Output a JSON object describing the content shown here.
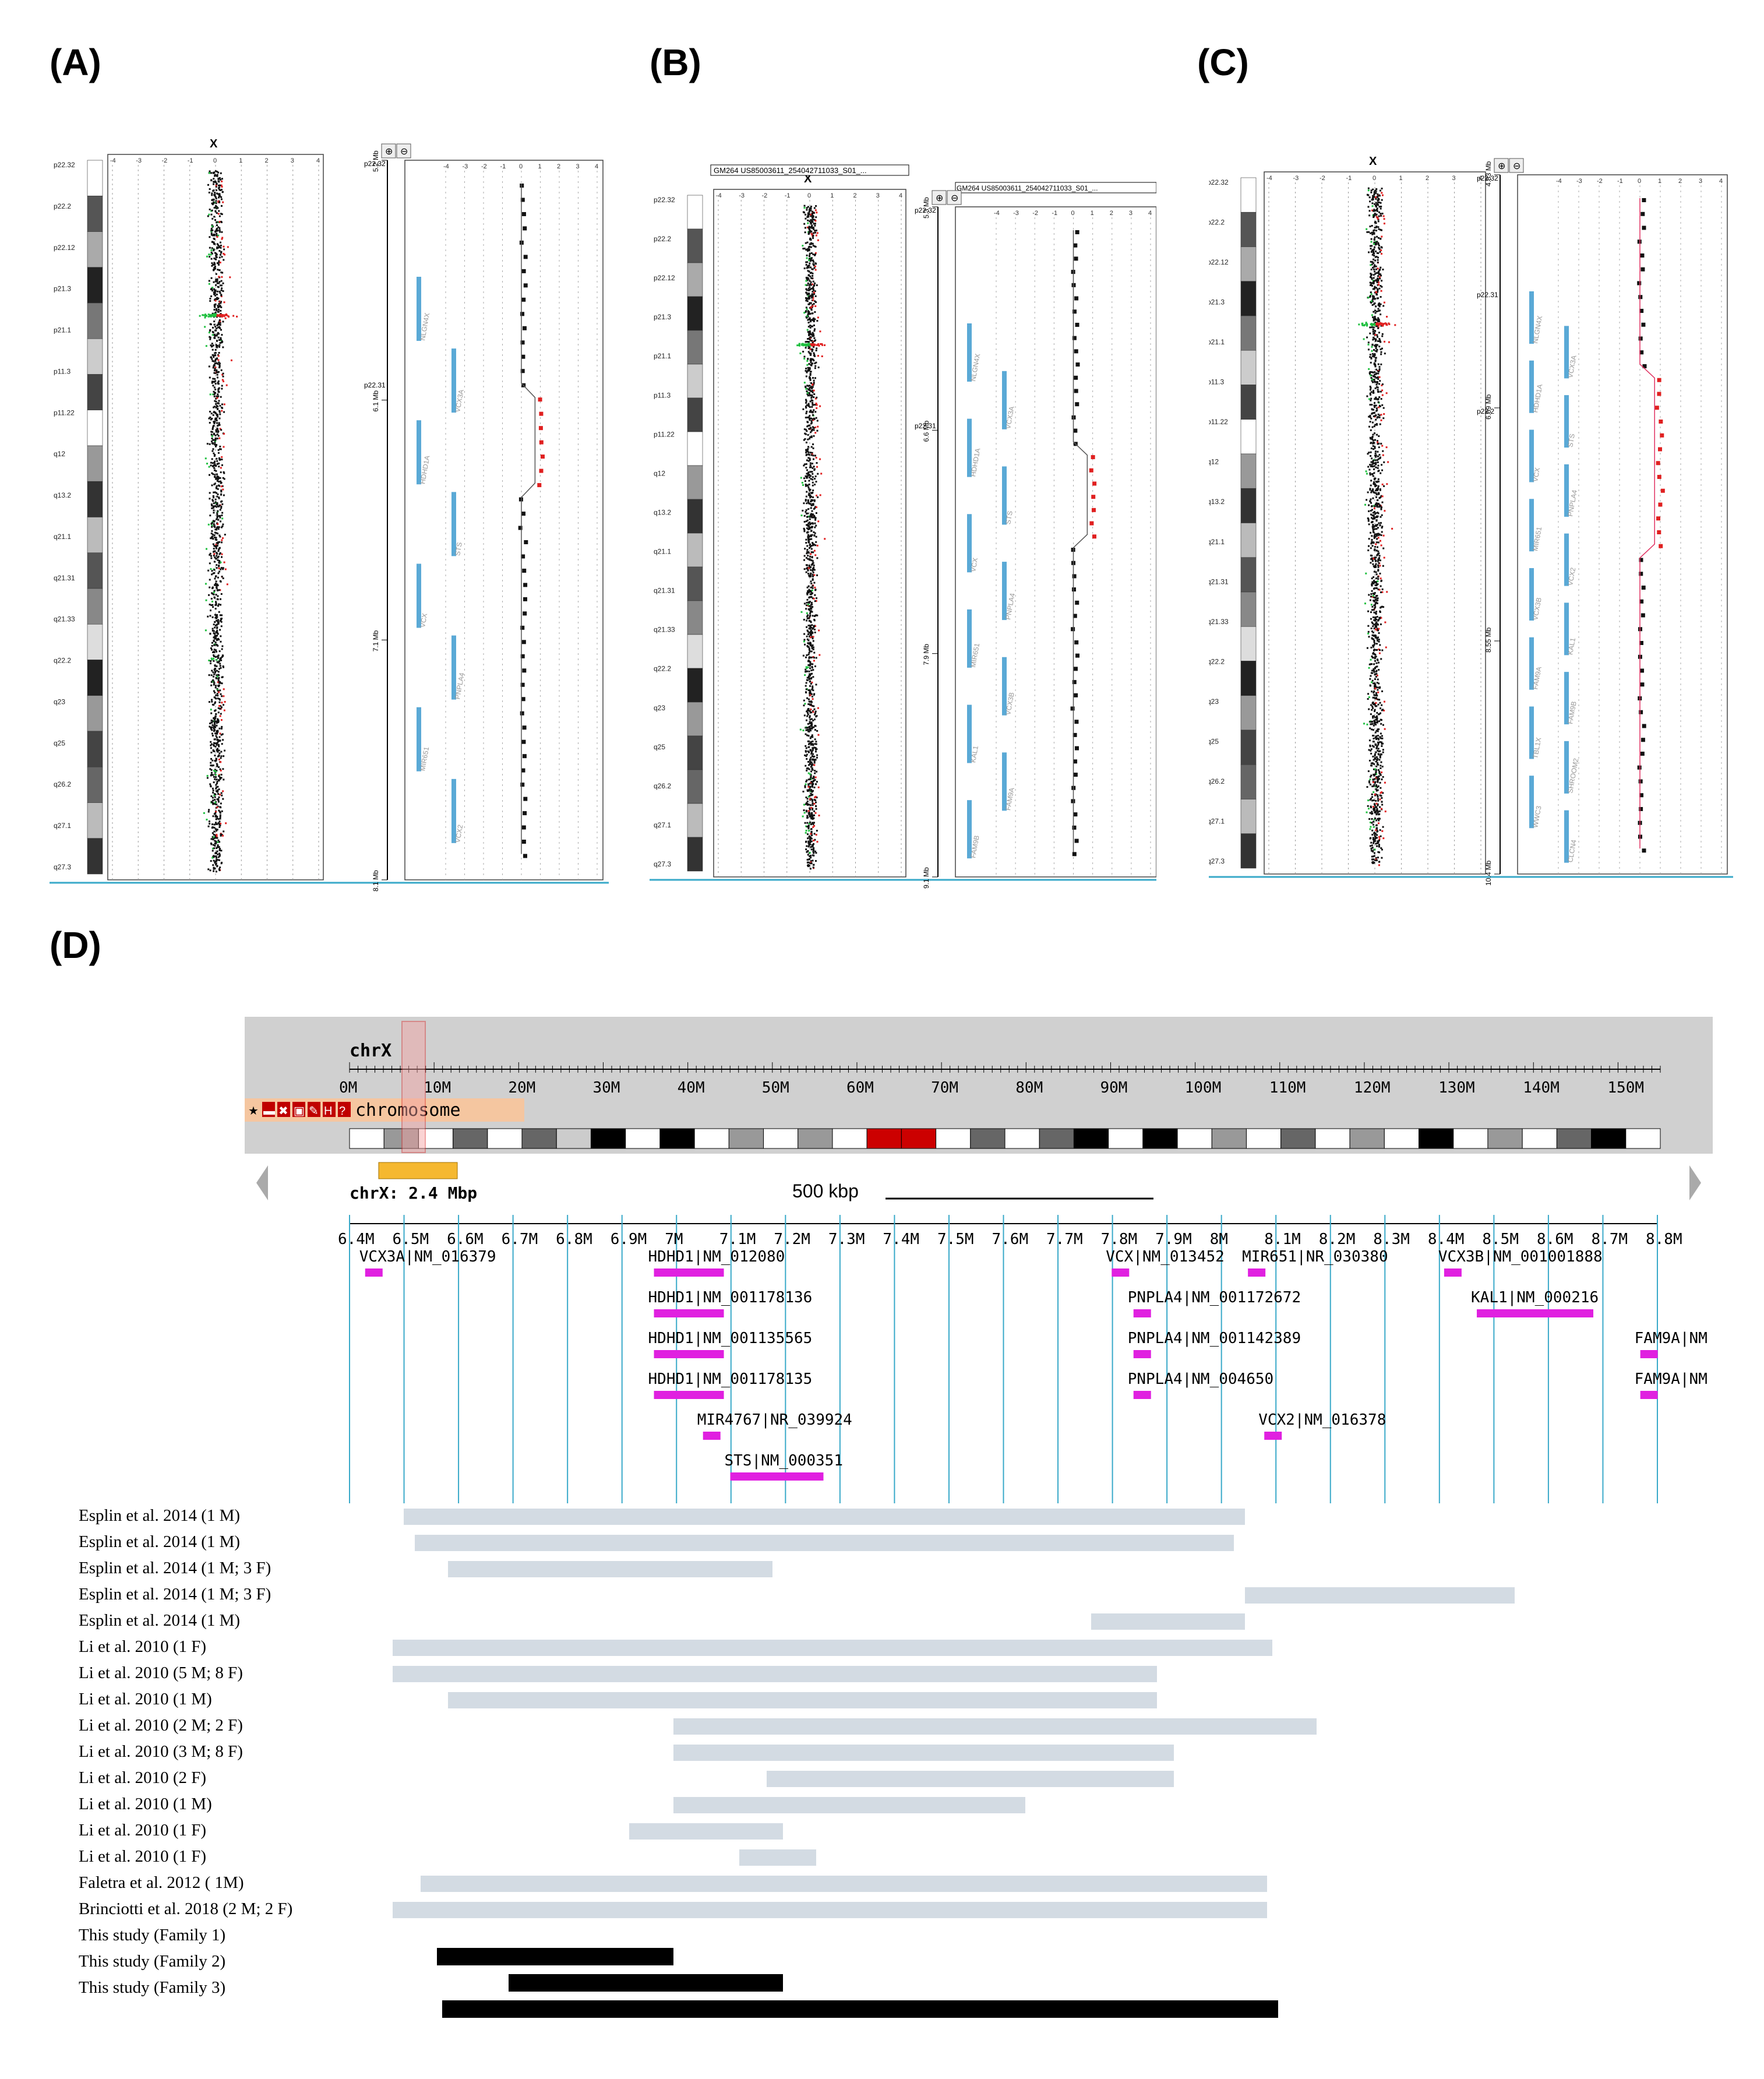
{
  "panels": {
    "A": {
      "label": "(A)",
      "chrom": "X",
      "bands": [
        "p22.32",
        "p22.2",
        "p22.12",
        "p21.3",
        "p21.1",
        "p11.3",
        "p11.22",
        "q12",
        "q13.2",
        "q21.1",
        "q21.31",
        "q21.33",
        "q22.2",
        "q23",
        "q25",
        "q26.2",
        "q27.1",
        "q27.3"
      ],
      "mb_ticks": [
        "5.2 Mb",
        "6.1 Mb",
        "7.1 Mb",
        "8.1 Mb"
      ],
      "zoom_bands": [
        "p22.32",
        "p22.31"
      ],
      "genes": [
        "NLGN4X",
        "VCX3A",
        "HDHD1A",
        "STS",
        "VCX",
        "PNPLA4",
        "MIR651",
        "VCX2"
      ]
    },
    "B": {
      "label": "(B)",
      "chrom": "X",
      "sample_label": "GM264 US85003611_254042711033_S01_...",
      "bands": [
        "p22.32",
        "p22.2",
        "p22.12",
        "p21.3",
        "p21.1",
        "p11.3",
        "p11.22",
        "q12",
        "q13.2",
        "q21.1",
        "q21.31",
        "q21.33",
        "q22.2",
        "q23",
        "q25",
        "q26.2",
        "q27.1",
        "q27.3"
      ],
      "mb_ticks": [
        "5.3 Mb",
        "6.6 Mb",
        "7.9 Mb",
        "9.1 Mb"
      ],
      "zoom_bands": [
        "p22.32",
        "p22.31"
      ],
      "genes": [
        "NLGN4X",
        "VCX3A",
        "HDHD1A",
        "STS",
        "VCX",
        "PNPLA4",
        "MIR651",
        "VCX3B",
        "KAL1",
        "FAM9A",
        "FAM9B"
      ]
    },
    "C": {
      "label": "(C)",
      "chrom": "X",
      "bands": [
        "p22.32",
        "p22.2",
        "p22.12",
        "p21.3",
        "p21.1",
        "p11.3",
        "p11.22",
        "q12",
        "q13.2",
        "q21.1",
        "q21.31",
        "q21.33",
        "q22.2",
        "q23",
        "q25",
        "q26.2",
        "q27.1",
        "q27.3"
      ],
      "mb_ticks": [
        "4.83 Mb",
        "6.69 Mb",
        "8.55 Mb",
        "10.4 Mb"
      ],
      "zoom_bands": [
        "p22.32",
        "p22.31",
        "p22.2"
      ],
      "genes": [
        "NLGN4X",
        "VCX3A",
        "HDHD1A",
        "STS",
        "VCX",
        "PNPLA4",
        "MIR651",
        "VCX2",
        "VCX3B",
        "KAL1",
        "FAM9A",
        "FAM9B",
        "TBL1X",
        "SHROOM2",
        "WWC3",
        "CLCN4"
      ]
    }
  },
  "axis_ticks": [
    "-4",
    "-3",
    "-2",
    "-1",
    "0",
    "1",
    "2",
    "3",
    "4"
  ],
  "panel_D": {
    "label": "(D)",
    "chrom_title": "chrX",
    "chrom_ticks": [
      "0M",
      "10M",
      "20M",
      "30M",
      "40M",
      "50M",
      "60M",
      "70M",
      "80M",
      "90M",
      "100M",
      "110M",
      "120M",
      "130M",
      "140M",
      "150M"
    ],
    "track_name": "chromosome",
    "region_label": "chrX: 2.4 Mbp",
    "scale_label": "500 kbp",
    "region_ticks": [
      "6.4M",
      "6.5M",
      "6.6M",
      "6.7M",
      "6.8M",
      "6.9M",
      "7M",
      "7.1M",
      "7.2M",
      "7.3M",
      "7.4M",
      "7.5M",
      "7.6M",
      "7.7M",
      "7.8M",
      "7.9M",
      "8M",
      "8.1M",
      "8.2M",
      "8.3M",
      "8.4M",
      "8.5M",
      "8.6M",
      "8.7M",
      "8.8M"
    ],
    "gene_labels": [
      "VCX3A|NM_016379",
      "HDHD1|NM_012080",
      "HDHD1|NM_001178136",
      "HDHD1|NM_001135565",
      "HDHD1|NM_001178135",
      "MIR4767|NR_039924",
      "STS|NM_000351",
      "VCX|NM_013452",
      "MIR651|NR_030380",
      "VCX3B|NM_001001888",
      "PNPLA4|NM_001172672",
      "PNPLA4|NM_001142389",
      "PNPLA4|NM_004650",
      "VCX2|NM_016378",
      "KAL1|NM_000216",
      "FAM9A|NM",
      "FAM9A|NM"
    ],
    "studies": [
      {
        "label": "Esplin et al. 2014 (1 M)",
        "start": 6.52,
        "end": 8.05
      },
      {
        "label": "Esplin et al. 2014 (1 M)",
        "start": 6.54,
        "end": 8.03
      },
      {
        "label": "Esplin et al. 2014 (1 M; 3 F)",
        "start": 6.6,
        "end": 7.19
      },
      {
        "label": "Esplin et al. 2014 (1 M; 3 F)",
        "start": 8.05,
        "end": 8.54
      },
      {
        "label": "Esplin et al. 2014 (1 M)",
        "start": 7.77,
        "end": 8.05
      },
      {
        "label": "Li et al. 2010 (1 F)",
        "start": 6.5,
        "end": 8.1
      },
      {
        "label": "Li et al. 2010 (5 M; 8 F)",
        "start": 6.5,
        "end": 7.89
      },
      {
        "label": "Li et al. 2010 (1 M)",
        "start": 6.6,
        "end": 7.89
      },
      {
        "label": "Li et al. 2010 (2 M; 2 F)",
        "start": 7.01,
        "end": 8.18
      },
      {
        "label": "Li et al. 2010 (3 M; 8 F)",
        "start": 7.01,
        "end": 7.92
      },
      {
        "label": "Li et al. 2010 (2 F)",
        "start": 7.18,
        "end": 7.92
      },
      {
        "label": "Li et al. 2010 (1 M)",
        "start": 7.01,
        "end": 7.65
      },
      {
        "label": "Li et al. 2010 (1 F)",
        "start": 6.93,
        "end": 7.21
      },
      {
        "label": "Li et al. 2010 (1 F)",
        "start": 7.13,
        "end": 7.27
      },
      {
        "label": "Faletra et al. 2012 ( 1M)",
        "start": 6.55,
        "end": 8.09
      },
      {
        "label": "Brinciotti et al. 2018 (2 M; 2 F)",
        "start": 6.5,
        "end": 8.09
      },
      {
        "label": "This study (Family 1)",
        "start": 6.58,
        "end": 7.01
      },
      {
        "label": "This study (Family 2)",
        "start": 6.71,
        "end": 7.21
      },
      {
        "label": "This study (Family 3)",
        "start": 6.59,
        "end": 8.11
      }
    ]
  },
  "colors": {
    "band_line": "#39a9c9",
    "gene": "#e020e0",
    "study_bar": "#d3dbe3",
    "family_bar": "#000000",
    "gain": "#e02020",
    "loss": "#20c040",
    "ideo_bg": "#d0d0d0",
    "region_box": "#f5c6a0"
  }
}
